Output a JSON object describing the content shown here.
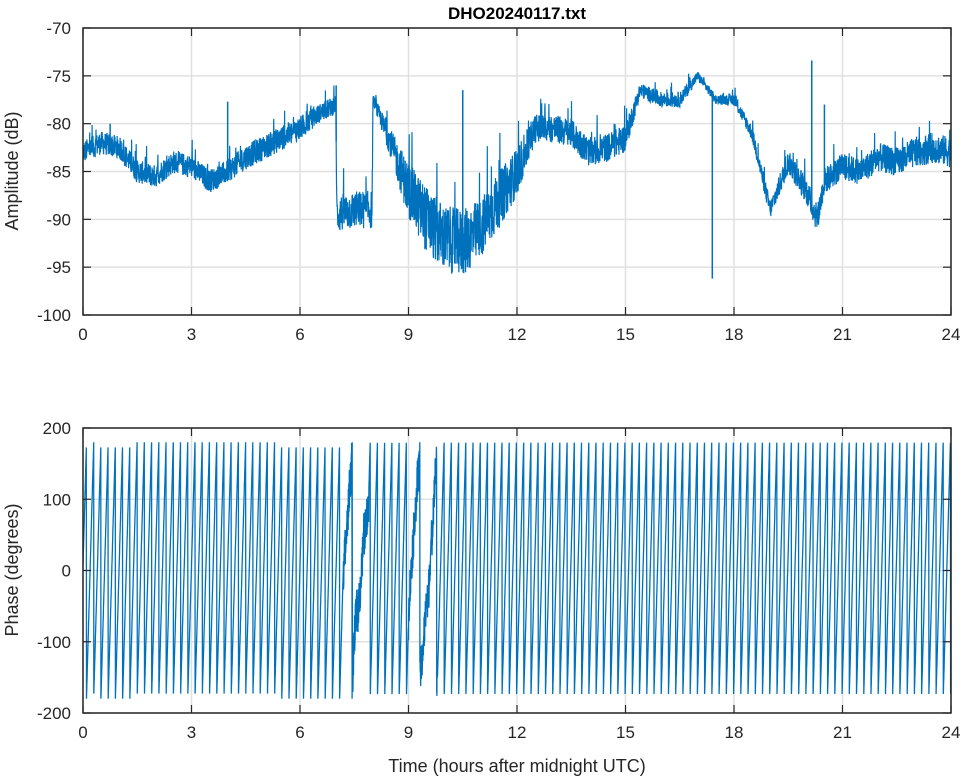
{
  "chart_data": [
    {
      "type": "line",
      "title": "DHO20240117.txt",
      "xlabel": "",
      "ylabel": "Amplitude (dB)",
      "xlim": [
        0,
        24
      ],
      "ylim": [
        -100,
        -70
      ],
      "grid": true,
      "xticks": [
        "0",
        "3",
        "6",
        "9",
        "12",
        "15",
        "18",
        "21",
        "24"
      ],
      "yticks": [
        "-70",
        "-75",
        "-80",
        "-85",
        "-90",
        "-95",
        "-100"
      ],
      "series": [
        {
          "name": "Amplitude",
          "color": "#0072BD",
          "x": [
            0,
            0.5,
            1,
            1.5,
            2,
            2.5,
            3,
            3.5,
            4,
            4.5,
            5,
            5.5,
            6,
            6.5,
            6.99,
            7.02,
            7.5,
            7.99,
            8.02,
            8.5,
            9,
            9.5,
            10,
            10.5,
            11,
            11.5,
            12,
            12.5,
            13,
            13.5,
            14,
            14.5,
            15,
            15.4,
            16,
            16.5,
            17,
            17.5,
            18,
            18.5,
            19,
            19.5,
            20,
            20.3,
            20.5,
            21,
            21.5,
            22,
            22.5,
            23,
            23.5,
            24
          ],
          "y": [
            -83,
            -82,
            -82.5,
            -85,
            -85.5,
            -84,
            -84.5,
            -86,
            -85,
            -83.5,
            -82.5,
            -81.5,
            -80.5,
            -79,
            -78,
            -89.5,
            -89,
            -89,
            -77.5,
            -82,
            -87,
            -90,
            -92,
            -92.5,
            -91,
            -88,
            -85,
            -80.5,
            -80.5,
            -81,
            -83,
            -82.5,
            -81.5,
            -76.5,
            -77.5,
            -77.5,
            -75,
            -77.5,
            -77.5,
            -81,
            -89,
            -84,
            -87,
            -90,
            -86,
            -84.5,
            -85,
            -83.5,
            -84,
            -83,
            -82.5,
            -83
          ],
          "noise_db": [
            1.2,
            1.2,
            1.2,
            1.2,
            1.2,
            1.2,
            1.2,
            1.2,
            1.2,
            1.3,
            1.3,
            1.3,
            1.3,
            1,
            1,
            2,
            2,
            2,
            0.6,
            1.5,
            3,
            3.5,
            3.5,
            3.5,
            3.2,
            3,
            2.5,
            1.5,
            1.5,
            1.5,
            1.5,
            1.5,
            1.5,
            0.8,
            0.8,
            0.8,
            0.5,
            0.5,
            0.6,
            0.8,
            1,
            1.2,
            1.4,
            1.4,
            1.4,
            1.4,
            1.4,
            1.5,
            1.5,
            1.6,
            1.6,
            1.6
          ],
          "spikes": [
            {
              "x": 0.75,
              "y": -80
            },
            {
              "x": 4.0,
              "y": -77.7
            },
            {
              "x": 7.0,
              "y": -76
            },
            {
              "x": 10.5,
              "y": -76.5
            },
            {
              "x": 17.4,
              "y": -96.2
            },
            {
              "x": 20.15,
              "y": -73.4
            },
            {
              "x": 20.5,
              "y": -78
            }
          ]
        }
      ]
    },
    {
      "type": "line",
      "title": "",
      "xlabel": "Time (hours after midnight UTC)",
      "ylabel": "Phase (degrees)",
      "xlim": [
        0,
        24
      ],
      "ylim": [
        -200,
        200
      ],
      "grid": true,
      "xticks": [
        "0",
        "3",
        "6",
        "9",
        "12",
        "15",
        "18",
        "21",
        "24"
      ],
      "yticks": [
        "200",
        "100",
        "0",
        "-100",
        "-200"
      ],
      "series": [
        {
          "name": "Phase",
          "color": "#0072BD",
          "wrap_range": [
            -180,
            180
          ],
          "cycles_per_hour": 5,
          "disturbed_intervals": [
            [
              7.2,
              7.9
            ],
            [
              9.0,
              9.8
            ]
          ]
        }
      ]
    }
  ]
}
